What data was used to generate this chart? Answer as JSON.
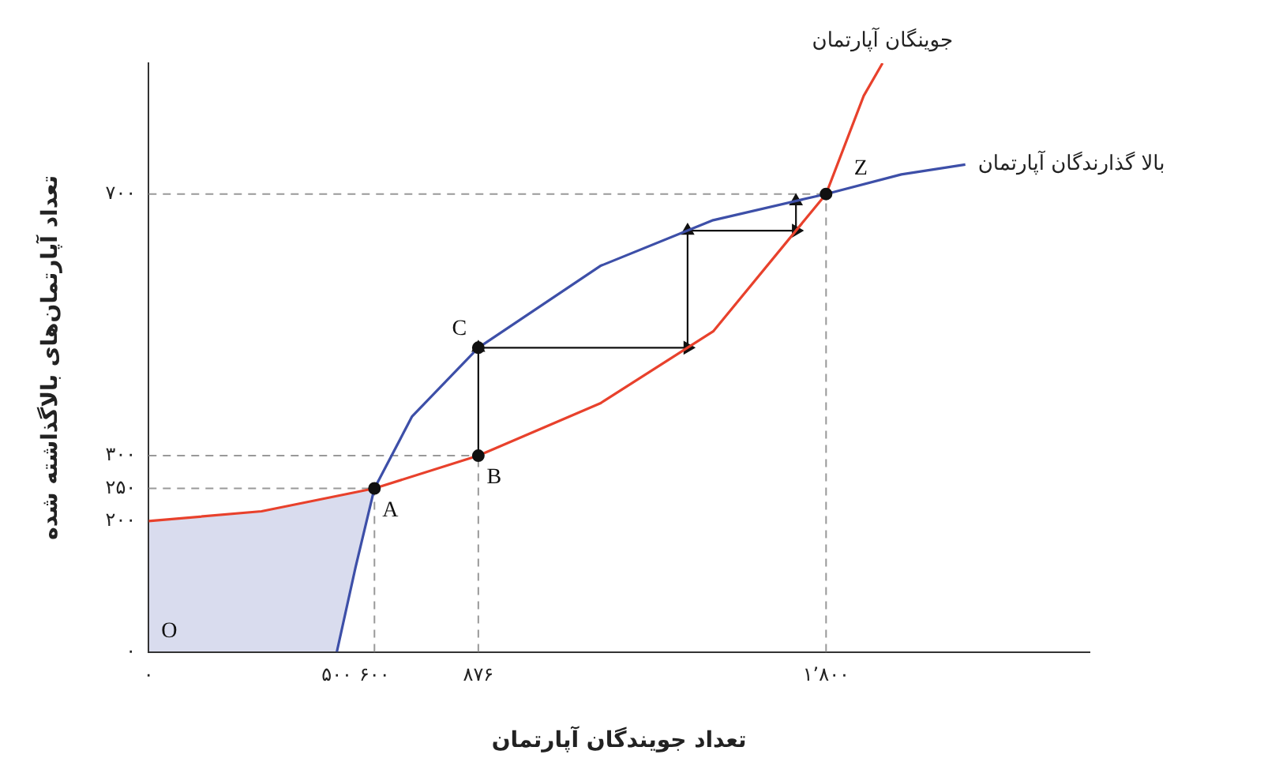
{
  "chart_data": {
    "type": "line",
    "xlabel": "تعداد جویندگان آپارتمان",
    "ylabel": "تعداد آپارتمان‌های بالاگذاشته شده",
    "xlim": [
      0,
      2500
    ],
    "ylim": [
      0,
      900
    ],
    "xticks": [
      {
        "value": 0,
        "label": "۰"
      },
      {
        "value": 500,
        "label": "۵۰۰"
      },
      {
        "value": 600,
        "label": "۶۰۰"
      },
      {
        "value": 876,
        "label": "۸۷۶"
      },
      {
        "value": 1800,
        "label": "۱٬۸۰۰"
      }
    ],
    "yticks": [
      {
        "value": 0,
        "label": "۰"
      },
      {
        "value": 200,
        "label": "۲۰۰"
      },
      {
        "value": 250,
        "label": "۲۵۰"
      },
      {
        "value": 300,
        "label": "۳۰۰"
      },
      {
        "value": 700,
        "label": "۷۰۰"
      }
    ],
    "grid": false,
    "legend": false,
    "series": [
      {
        "name": "جوینگان آپارتمان",
        "color": "#e8412c",
        "x": [
          0,
          300,
          600,
          876,
          1200,
          1500,
          1800,
          1900,
          1950
        ],
        "values": [
          200,
          215,
          250,
          300,
          380,
          490,
          700,
          850,
          900
        ]
      },
      {
        "name": "بالا گذارندگان آپارتمان",
        "color": "#3d4fa8",
        "x": [
          500,
          550,
          600,
          700,
          876,
          1200,
          1500,
          1800,
          2000,
          2170
        ],
        "values": [
          0,
          130,
          250,
          360,
          465,
          590,
          660,
          700,
          730,
          745
        ]
      },
      {
        "type": "line",
        "marker": "triangle",
        "color": "#111111",
        "x": [
          876,
          876,
          1432,
          1432,
          1720,
          1720
        ],
        "values": [
          300,
          465,
          465,
          644,
          644,
          689
        ]
      },
      {
        "type": "scatter",
        "marker": "circle",
        "color": "#111111",
        "x": [
          600,
          876,
          876,
          1800
        ],
        "values": [
          250,
          300,
          465,
          700
        ]
      }
    ],
    "ref_lines": [
      {
        "axis": "x",
        "value": 600,
        "line_style": "dashed",
        "color": "#999999"
      },
      {
        "axis": "x",
        "value": 876,
        "line_style": "dashed",
        "color": "#999999"
      },
      {
        "axis": "x",
        "value": 1800,
        "line_style": "dashed",
        "color": "#999999"
      },
      {
        "axis": "y",
        "value": 250,
        "line_style": "dashed",
        "color": "#999999"
      },
      {
        "axis": "y",
        "value": 300,
        "line_style": "dashed",
        "color": "#999999"
      },
      {
        "axis": "y",
        "value": 700,
        "line_style": "dashed",
        "color": "#999999"
      }
    ],
    "annotations": [
      {
        "text": "A",
        "x": 600,
        "y": 250
      },
      {
        "text": "B",
        "x": 876,
        "y": 300
      },
      {
        "text": "C",
        "x": 876,
        "y": 465
      },
      {
        "text": "Z",
        "x": 1800,
        "y": 700
      },
      "O"
    ]
  }
}
